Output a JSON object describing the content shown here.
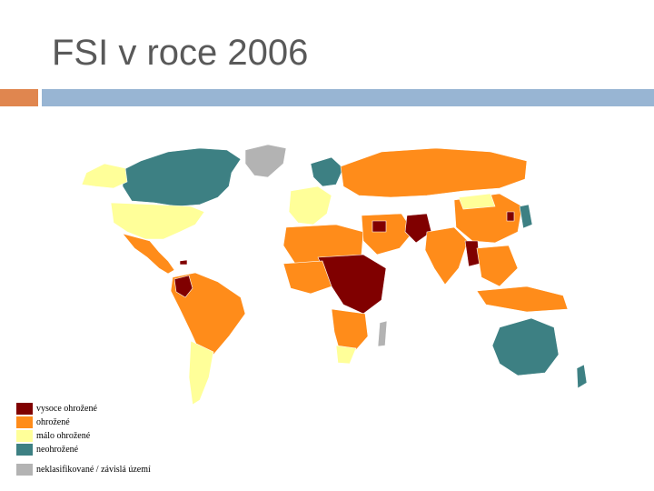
{
  "slide": {
    "title": "FSI v roce 2006"
  },
  "accents": {
    "left_bar": "#e0864f",
    "right_bar": "#98b5d3"
  },
  "map": {
    "subject": "world map of Fragile States Index 2006",
    "colors": {
      "high_alert": "#800000",
      "warning": "#ff8c1a",
      "low_warning": "#ffff99",
      "not_warning": "#3d8083",
      "unclassified": "#b3b3b3"
    }
  },
  "legend": {
    "items": [
      {
        "label": "vysoce ohrožené",
        "color": "#800000"
      },
      {
        "label": "ohrožené",
        "color": "#ff8c1a"
      },
      {
        "label": "málo ohrožené",
        "color": "#ffff99"
      },
      {
        "label": "neohrožené",
        "color": "#3d8083"
      }
    ],
    "extra": {
      "label": "neklasifikované / závislá území",
      "color": "#b3b3b3"
    }
  }
}
